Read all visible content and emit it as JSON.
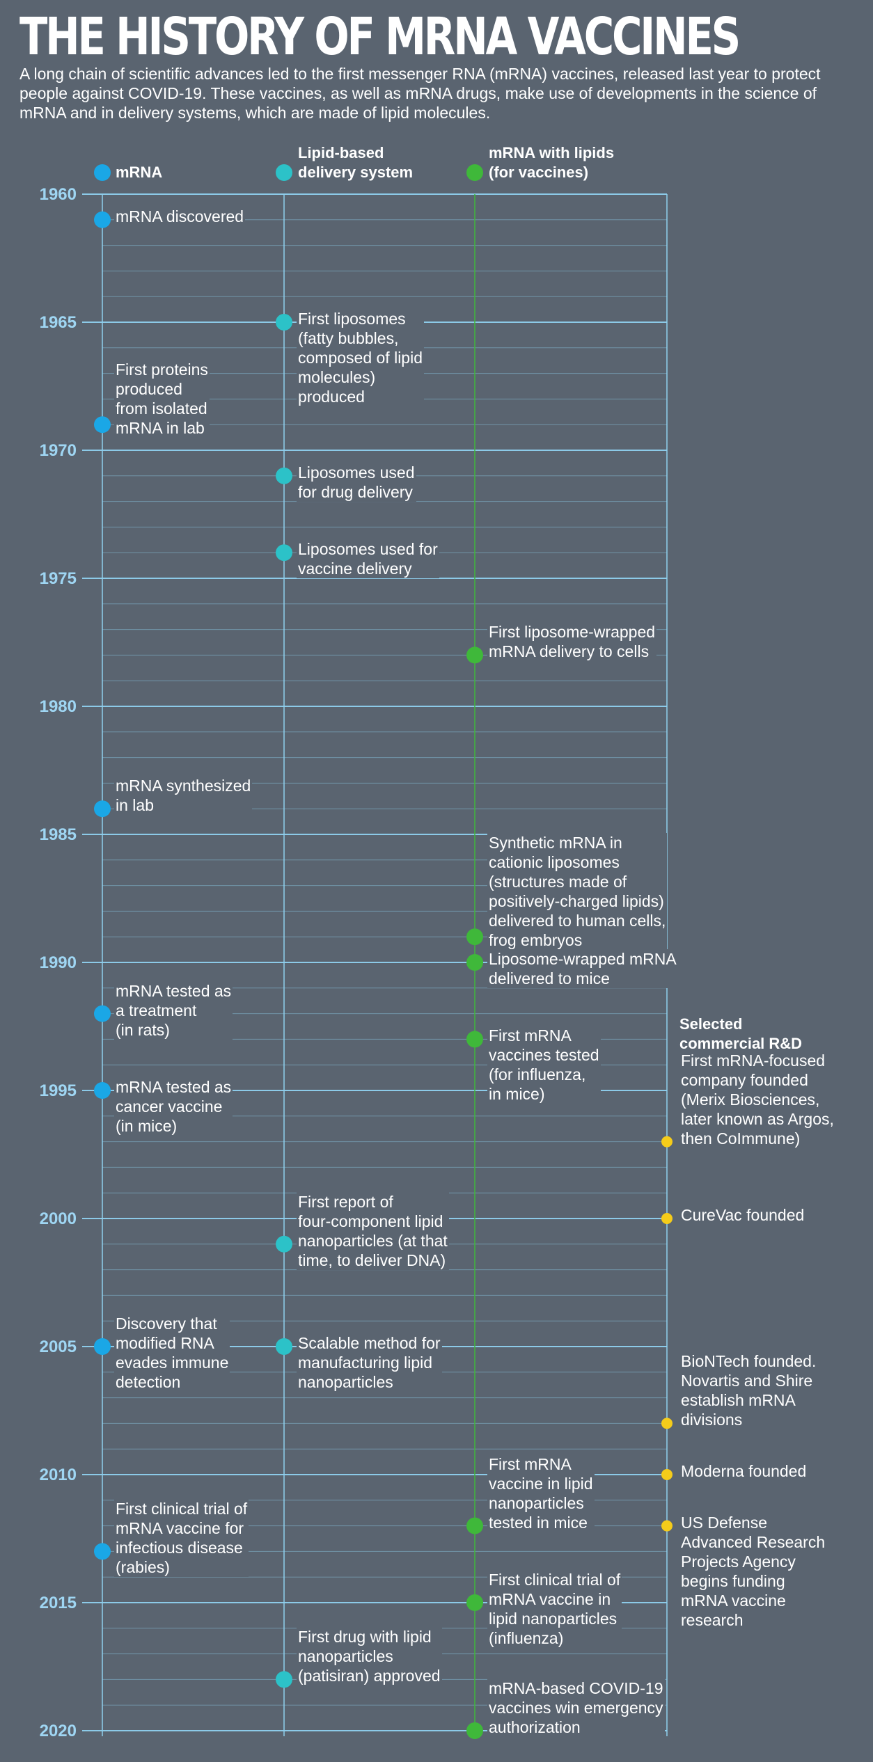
{
  "title": "THE HISTORY OF MRNA VACCINES",
  "intro": "A long chain of scientific advances led to the first messenger RNA (mRNA) vaccines, released last year to protect people against COVID-19. These vaccines, as well as mRNA drugs, make use of developments in the science of mRNA and in delivery systems, which are made of lipid molecules.",
  "colors": {
    "background": "#5a6470",
    "axis_label": "#9fd6f3",
    "grid": "#8fd0ee",
    "mrna": "#1aa7e6",
    "lipid": "#2cc2c8",
    "mrna_lipid": "#3fb83a",
    "commercial": "#f5cc1a"
  },
  "legend": {
    "mrna": "mRNA",
    "lipid": "Lipid-based\ndelivery system",
    "mrna_lipid": "mRNA with lipids\n(for vaccines)",
    "commercial": "Selected\ncommercial R&D"
  },
  "axis": {
    "start_year": 1960,
    "end_year": 2020,
    "tick_labels": [
      "1960",
      "1965",
      "1970",
      "1975",
      "1980",
      "1985",
      "1990",
      "1995",
      "2000",
      "2005",
      "2010",
      "2015",
      "2020"
    ]
  },
  "events": [
    {
      "track": "mrna",
      "year": 1961,
      "text": "mRNA discovered"
    },
    {
      "track": "mrna",
      "year": 1969,
      "text": "First proteins\nproduced\nfrom isolated\nmRNA in lab"
    },
    {
      "track": "mrna",
      "year": 1984,
      "text": "mRNA synthesized\nin lab"
    },
    {
      "track": "mrna",
      "year": 1992,
      "text": "mRNA tested as\na treatment\n(in rats)"
    },
    {
      "track": "mrna",
      "year": 1995,
      "text": "mRNA tested as\ncancer vaccine\n(in mice)"
    },
    {
      "track": "mrna",
      "year": 2005,
      "text": "Discovery that\nmodified RNA\nevades immune\ndetection"
    },
    {
      "track": "mrna",
      "year": 2013,
      "text": "First clinical trial of\nmRNA vaccine for\ninfectious disease\n(rabies)"
    },
    {
      "track": "lipid",
      "year": 1965,
      "text": "First liposomes\n(fatty bubbles,\ncomposed of lipid\nmolecules)\nproduced"
    },
    {
      "track": "lipid",
      "year": 1971,
      "text": "Liposomes used\nfor drug delivery"
    },
    {
      "track": "lipid",
      "year": 1974,
      "text": "Liposomes used for\nvaccine delivery"
    },
    {
      "track": "lipid",
      "year": 2001,
      "text": "First report of\nfour-component lipid\nnanoparticles (at that\ntime, to deliver DNA)"
    },
    {
      "track": "lipid",
      "year": 2005,
      "text": "Scalable method for\nmanufacturing lipid\nnanoparticles"
    },
    {
      "track": "lipid",
      "year": 2018,
      "text": "First drug with lipid\nnanoparticles\n(patisiran) approved"
    },
    {
      "track": "mrna_lipid",
      "year": 1978,
      "text": "First liposome-wrapped\nmRNA delivery to cells"
    },
    {
      "track": "mrna_lipid",
      "year": 1989,
      "text": "Synthetic mRNA in\ncationic liposomes\n(structures made of\npositively-charged lipids)\ndelivered to human cells,\nfrog embryos"
    },
    {
      "track": "mrna_lipid",
      "year": 1990,
      "text": "Liposome-wrapped mRNA\ndelivered to mice"
    },
    {
      "track": "mrna_lipid",
      "year": 1993,
      "text": "First mRNA\nvaccines tested\n(for influenza,\nin mice)"
    },
    {
      "track": "mrna_lipid",
      "year": 2012,
      "text": "First mRNA\nvaccine in lipid\nnanoparticles\ntested in mice"
    },
    {
      "track": "mrna_lipid",
      "year": 2015,
      "text": "First clinical trial of\nmRNA vaccine in\nlipid nanoparticles\n(influenza)"
    },
    {
      "track": "mrna_lipid",
      "year": 2020,
      "text": "mRNA-based COVID-19\nvaccines win emergency\nauthorization"
    },
    {
      "track": "commercial",
      "year": 1997,
      "text": "First mRNA-focused\ncompany founded\n(Merix Biosciences,\nlater known as Argos,\nthen CoImmune)"
    },
    {
      "track": "commercial",
      "year": 2000,
      "text": "CureVac founded"
    },
    {
      "track": "commercial",
      "year": 2008,
      "text": "BioNTech founded.\nNovartis and Shire\nestablish mRNA\ndivisions"
    },
    {
      "track": "commercial",
      "year": 2010,
      "text": "Moderna founded"
    },
    {
      "track": "commercial",
      "year": 2012,
      "text": "US Defense\nAdvanced Research\nProjects Agency\nbegins funding\nmRNA vaccine\nresearch"
    }
  ]
}
